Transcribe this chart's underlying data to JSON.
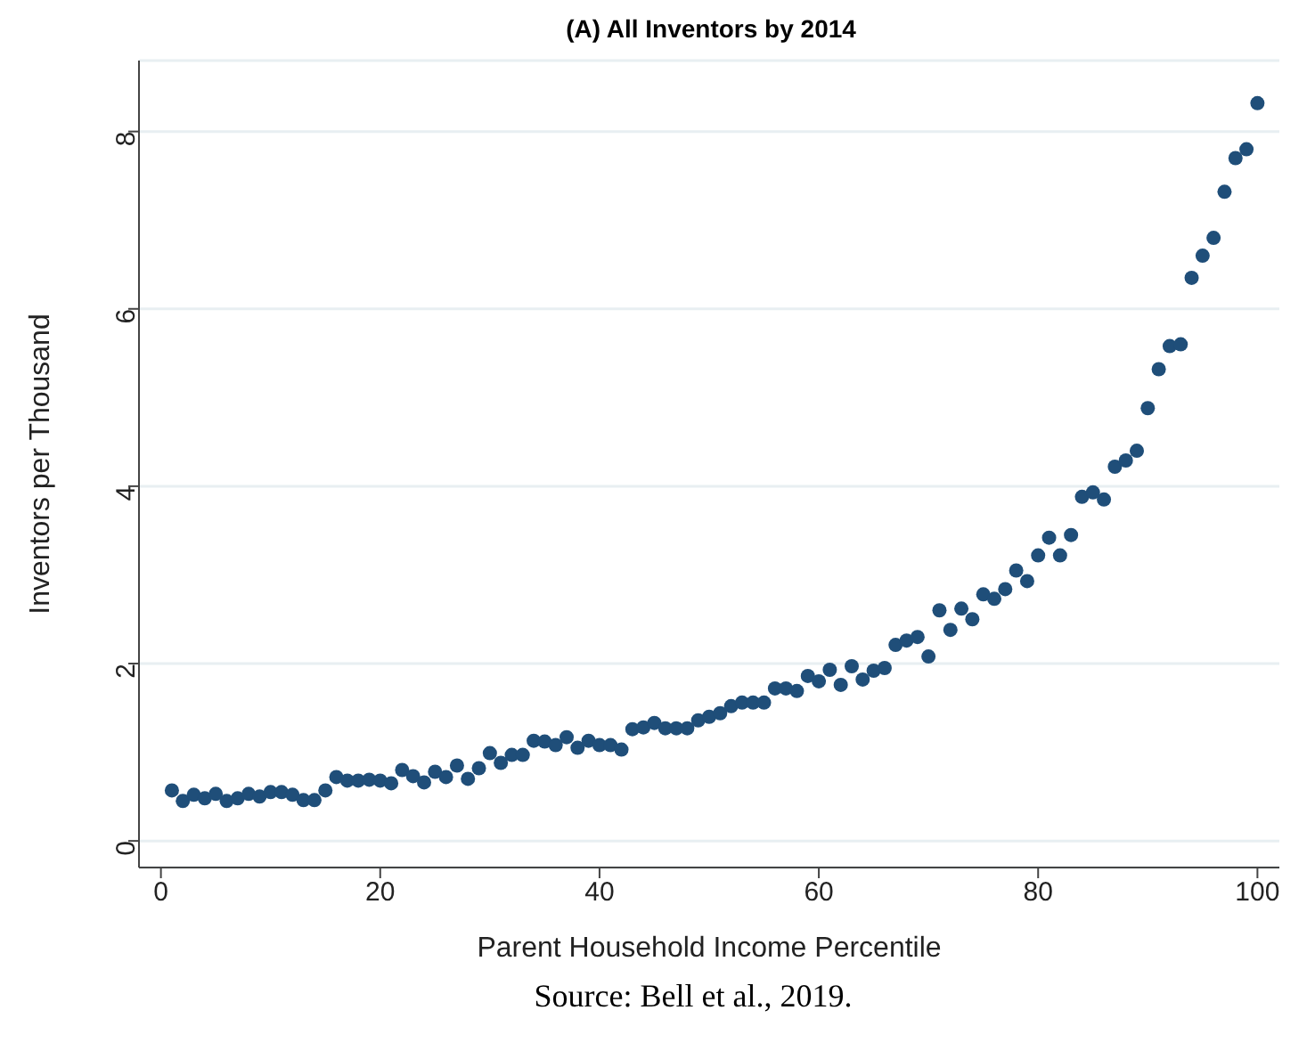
{
  "chart_data": {
    "type": "scatter",
    "title": "(A)  All Inventors by 2014",
    "xlabel": "Parent Household Income Percentile",
    "ylabel": "Inventors per Thousand",
    "annotations": [
      "Source:  Bell et al., 2019."
    ],
    "x": [
      1,
      2,
      3,
      4,
      5,
      6,
      7,
      8,
      9,
      10,
      11,
      12,
      13,
      14,
      15,
      16,
      17,
      18,
      19,
      20,
      21,
      22,
      23,
      24,
      25,
      26,
      27,
      28,
      29,
      30,
      31,
      32,
      33,
      34,
      35,
      36,
      37,
      38,
      39,
      40,
      41,
      42,
      43,
      44,
      45,
      46,
      47,
      48,
      49,
      50,
      51,
      52,
      53,
      54,
      55,
      56,
      57,
      58,
      59,
      60,
      61,
      62,
      63,
      64,
      65,
      66,
      67,
      68,
      69,
      70,
      71,
      72,
      73,
      74,
      75,
      76,
      77,
      78,
      79,
      80,
      81,
      82,
      83,
      84,
      85,
      86,
      87,
      88,
      89,
      90,
      91,
      92,
      93,
      94,
      95,
      96,
      97,
      98,
      99,
      100
    ],
    "values": [
      0.57,
      0.45,
      0.52,
      0.48,
      0.53,
      0.45,
      0.48,
      0.53,
      0.5,
      0.55,
      0.55,
      0.52,
      0.46,
      0.46,
      0.57,
      0.72,
      0.68,
      0.68,
      0.69,
      0.68,
      0.65,
      0.8,
      0.73,
      0.66,
      0.78,
      0.72,
      0.85,
      0.7,
      0.82,
      0.99,
      0.88,
      0.97,
      0.97,
      1.13,
      1.12,
      1.08,
      1.17,
      1.05,
      1.13,
      1.08,
      1.08,
      1.03,
      1.26,
      1.28,
      1.33,
      1.27,
      1.27,
      1.27,
      1.36,
      1.4,
      1.44,
      1.52,
      1.56,
      1.56,
      1.56,
      1.72,
      1.72,
      1.69,
      1.86,
      1.8,
      1.93,
      1.76,
      1.97,
      1.82,
      1.92,
      1.95,
      2.21,
      2.26,
      2.3,
      2.08,
      2.6,
      2.38,
      2.62,
      2.5,
      2.78,
      2.73,
      2.84,
      3.05,
      2.93,
      3.22,
      3.42,
      3.22,
      3.45,
      3.88,
      3.93,
      3.85,
      4.22,
      4.29,
      4.4,
      4.88,
      5.32,
      5.58,
      5.6,
      6.35,
      6.6,
      6.8,
      7.32,
      7.7,
      7.8,
      8.32
    ],
    "color": "#1f4e79",
    "marker": "circle",
    "grid": "y",
    "xlim": [
      -2,
      102
    ],
    "xticks": [
      0,
      20,
      40,
      60,
      80,
      100
    ],
    "ylim": [
      -0.3,
      8.8
    ],
    "yticks": [
      0,
      2,
      4,
      6,
      8
    ]
  }
}
